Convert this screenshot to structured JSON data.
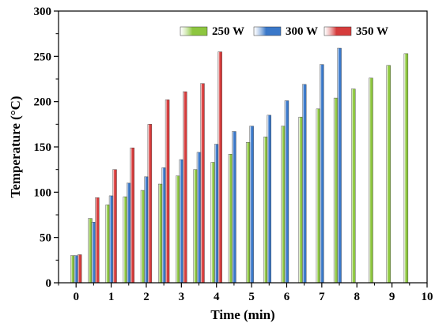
{
  "chart_data": {
    "type": "bar",
    "xlabel": "Time (min)",
    "ylabel": "Temperature (°C)",
    "xlim": [
      -0.5,
      10
    ],
    "ylim": [
      0,
      300
    ],
    "xticks": [
      0,
      1,
      2,
      3,
      4,
      5,
      6,
      7,
      8,
      9,
      10
    ],
    "yticks": [
      0,
      50,
      100,
      150,
      200,
      250,
      300
    ],
    "minor_x_step": 0.5,
    "minor_y_step": 25,
    "grid": false,
    "legend_position": "top-right",
    "series": [
      {
        "name": "250 W",
        "color": "#8dc63f",
        "x": [
          -0.1,
          0.4,
          0.9,
          1.4,
          1.9,
          2.4,
          2.9,
          3.4,
          3.9,
          4.4,
          4.9,
          5.4,
          5.9,
          6.4,
          6.9,
          7.4,
          7.9,
          8.4,
          8.9,
          9.4
        ],
        "values": [
          30,
          71,
          86,
          95,
          102,
          109,
          118,
          125,
          133,
          142,
          155,
          161,
          173,
          183,
          192,
          204,
          214,
          226,
          240,
          253
        ]
      },
      {
        "name": "300 W",
        "color": "#3a78c9",
        "x": [
          0.0,
          0.5,
          1.0,
          1.5,
          2.0,
          2.5,
          3.0,
          3.5,
          4.0,
          4.5,
          5.0,
          5.5,
          6.0,
          6.5,
          7.0,
          7.5
        ],
        "values": [
          30,
          67,
          96,
          110,
          117,
          127,
          136,
          144,
          153,
          167,
          173,
          185,
          201,
          219,
          241,
          259
        ]
      },
      {
        "name": "350 W",
        "color": "#d63c3c",
        "x": [
          0.1,
          0.6,
          1.1,
          1.6,
          2.1,
          2.6,
          3.1,
          3.6,
          4.1
        ],
        "values": [
          31,
          94,
          125,
          149,
          175,
          202,
          211,
          220,
          255
        ]
      }
    ]
  }
}
